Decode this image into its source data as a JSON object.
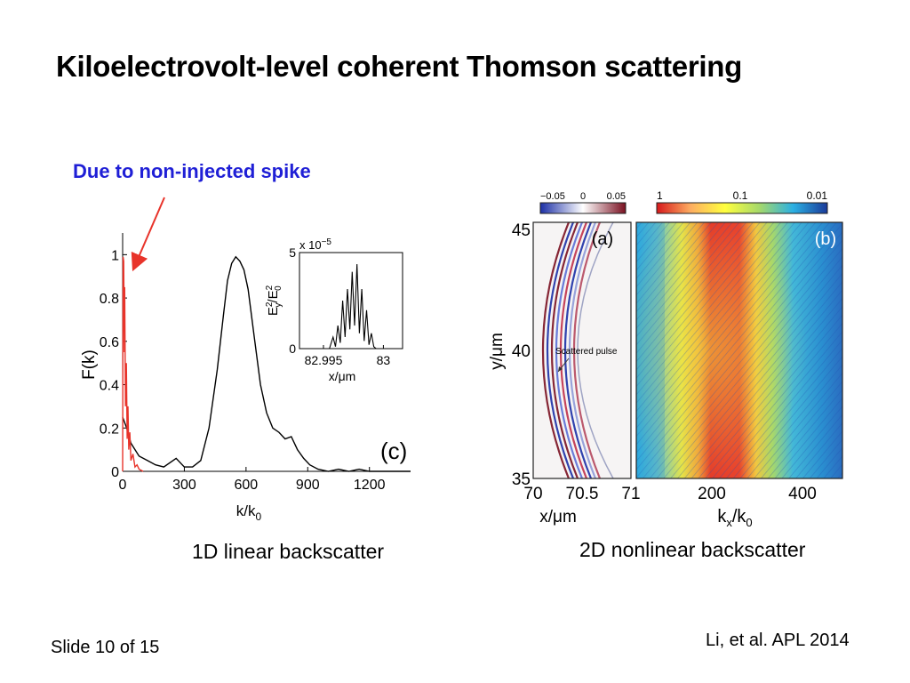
{
  "slide": {
    "title": "Kiloelectrovolt-level coherent Thomson scattering",
    "annotation": "Due to non-injected spike",
    "caption_left": "1D linear backscatter",
    "caption_right": "2D nonlinear backscatter",
    "citation": "Li, et al. APL 2014",
    "slide_number": "Slide 10 of 15",
    "annotation_arrow_color": "#e8332a"
  },
  "chart_data": [
    {
      "type": "line",
      "panel_label": "(c)",
      "xlabel": "k/k",
      "xlabel_sub": "0",
      "ylabel": "F(k)",
      "xlim": [
        0,
        1400
      ],
      "ylim": [
        0,
        1.1
      ],
      "xticks": [
        "0",
        "300",
        "600",
        "900",
        "1200"
      ],
      "yticks": [
        "0",
        "0.2",
        "0.4",
        "0.6",
        "0.8",
        "1"
      ],
      "series": [
        {
          "color": "#000000",
          "x": [
            0,
            20,
            40,
            80,
            120,
            160,
            200,
            260,
            300,
            340,
            380,
            420,
            460,
            490,
            510,
            530,
            550,
            570,
            590,
            610,
            640,
            670,
            700,
            730,
            760,
            790,
            820,
            850,
            880,
            910,
            950,
            1000,
            1050,
            1100,
            1150,
            1200,
            1300,
            1400
          ],
          "y": [
            0.25,
            0.2,
            0.13,
            0.07,
            0.05,
            0.03,
            0.02,
            0.06,
            0.02,
            0.02,
            0.05,
            0.2,
            0.47,
            0.72,
            0.88,
            0.96,
            0.99,
            0.97,
            0.93,
            0.84,
            0.62,
            0.4,
            0.27,
            0.2,
            0.18,
            0.15,
            0.16,
            0.1,
            0.06,
            0.03,
            0.01,
            0.0,
            0.01,
            0.0,
            0.01,
            0.0,
            0.0,
            0.0
          ]
        },
        {
          "color": "#e8332a",
          "x": [
            0,
            2,
            5,
            8,
            10,
            14,
            18,
            22,
            26,
            30,
            35,
            40,
            50,
            60,
            70,
            80,
            100
          ],
          "y": [
            0.0,
            0.99,
            0.97,
            0.55,
            0.85,
            0.3,
            0.5,
            0.15,
            0.3,
            0.1,
            0.18,
            0.05,
            0.08,
            0.02,
            0.03,
            0.01,
            0.0
          ]
        }
      ],
      "inset": {
        "ylabel": "E",
        "ylabel_base_sub": "y",
        "ylabel_base_sup": "2",
        "ylabel_den": "E",
        "ylabel_den_sub": "0",
        "ylabel_den_sup": "2",
        "xlabel": "x/μm",
        "exponent_base": "x 10",
        "exponent": "−5",
        "xticks": [
          "82.995",
          "83"
        ],
        "yticks": [
          "0",
          "5"
        ],
        "xlim": [
          82.993,
          83.0016
        ],
        "ylim": [
          0,
          5
        ],
        "x": [
          82.993,
          82.9955,
          82.9958,
          82.996,
          82.9962,
          82.9964,
          82.9966,
          82.9968,
          82.997,
          82.9972,
          82.9974,
          82.9976,
          82.9978,
          82.998,
          82.9982,
          82.9984,
          82.9986,
          82.9988,
          82.999,
          82.9992,
          82.9994,
          83.0016
        ],
        "y": [
          0,
          0,
          0.6,
          0.1,
          1.2,
          0.3,
          2.5,
          0.6,
          3.1,
          1.0,
          4.0,
          1.2,
          4.4,
          0.8,
          3.1,
          0.4,
          2.0,
          0.2,
          0.8,
          0.1,
          0,
          0
        ]
      }
    },
    {
      "type": "heatmap",
      "panel_label": "(a)",
      "xlabel": "x/μm",
      "ylabel": "y/μm",
      "xlim": [
        70,
        71
      ],
      "ylim": [
        35,
        45
      ],
      "xticks": [
        "70",
        "70.5",
        "71"
      ],
      "yticks": [
        "35",
        "40",
        "45"
      ],
      "colorbar": {
        "ticks": [
          "−0.05",
          "0",
          "0.05"
        ],
        "colors": [
          "#1b2fa6",
          "#ffffff",
          "#7a1020"
        ]
      },
      "annotation": "Scattered pulse"
    },
    {
      "type": "heatmap",
      "panel_label": "(b)",
      "xlabel": "k",
      "xlabel_sub": "x",
      "xlabel_tail": "/k",
      "xlabel_tail_sub": "0",
      "xticks": [
        "200",
        "400"
      ],
      "colorbar": {
        "ticks": [
          "1",
          "0.1",
          "0.01"
        ],
        "colors": [
          "#d7191c",
          "#fdae61",
          "#ffff3f",
          "#a6d96a",
          "#2bb0e3",
          "#1a3a9a"
        ]
      }
    }
  ]
}
